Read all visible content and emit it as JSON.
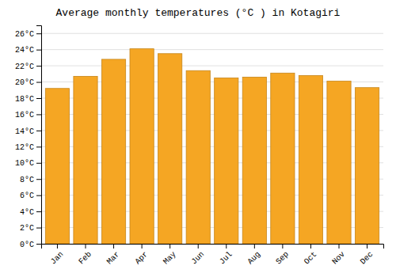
{
  "chart_data": {
    "type": "bar",
    "title": "Average monthly temperatures (°C ) in Kotagiri",
    "categories": [
      "Jan",
      "Feb",
      "Mar",
      "Apr",
      "May",
      "Jun",
      "Jul",
      "Aug",
      "Sep",
      "Oct",
      "Nov",
      "Dec"
    ],
    "values": [
      19.2,
      20.7,
      22.8,
      24.1,
      23.5,
      21.4,
      20.5,
      20.6,
      21.1,
      20.8,
      20.1,
      19.3
    ],
    "color": "#F5A623",
    "ylim": [
      0,
      27
    ],
    "yticks": [
      {
        "value": 0,
        "label": "0°C"
      },
      {
        "value": 2,
        "label": "2°C"
      },
      {
        "value": 4,
        "label": "4°C"
      },
      {
        "value": 6,
        "label": "6°C"
      },
      {
        "value": 8,
        "label": "8°C"
      },
      {
        "value": 10,
        "label": "10°C"
      },
      {
        "value": 12,
        "label": "12°C"
      },
      {
        "value": 14,
        "label": "14°C"
      },
      {
        "value": 16,
        "label": "16°C"
      },
      {
        "value": 18,
        "label": "18°C"
      },
      {
        "value": 20,
        "label": "20°C"
      },
      {
        "value": 22,
        "label": "22°C"
      },
      {
        "value": 24,
        "label": "24°C"
      },
      {
        "value": 26,
        "label": "26°C"
      }
    ],
    "grid": true
  }
}
